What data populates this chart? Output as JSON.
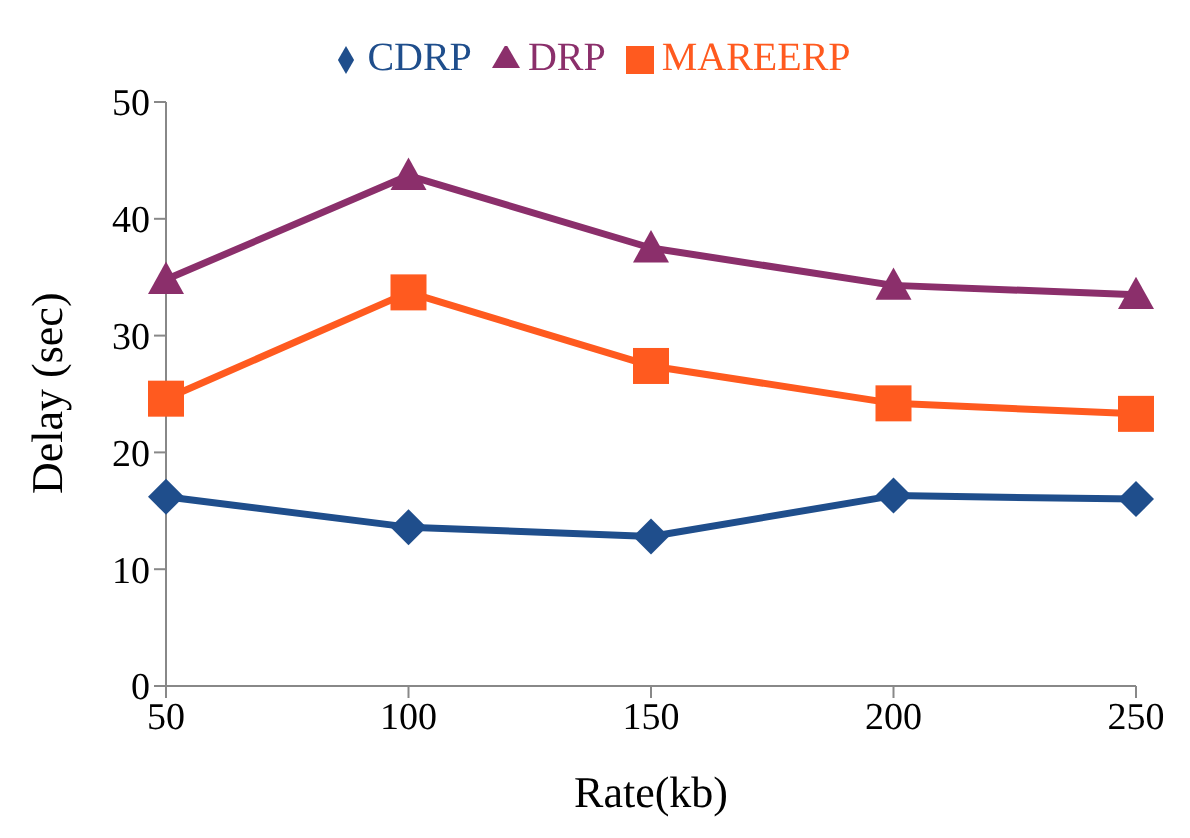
{
  "chart_data": {
    "type": "line",
    "xlabel": "Rate(kb)",
    "ylabel": "Delay (sec)",
    "categories": [
      "50",
      "100",
      "150",
      "200",
      "250"
    ],
    "series": [
      {
        "name": "CDRP",
        "color": "#1f4e8c",
        "marker": "diamond",
        "values": [
          16.2,
          13.6,
          12.8,
          16.3,
          16.0
        ]
      },
      {
        "name": "MAREERP",
        "color": "#ff5a1f",
        "marker": "square",
        "values": [
          24.6,
          33.7,
          27.4,
          24.2,
          23.3
        ]
      },
      {
        "name": "DRP",
        "color": "#8b2f6b",
        "marker": "triangle",
        "values": [
          34.8,
          43.7,
          37.5,
          34.3,
          33.5
        ]
      }
    ],
    "ylim": [
      0,
      50
    ],
    "yticks": [
      0,
      10,
      20,
      30,
      40,
      50
    ],
    "grid": false,
    "legend": "top"
  }
}
